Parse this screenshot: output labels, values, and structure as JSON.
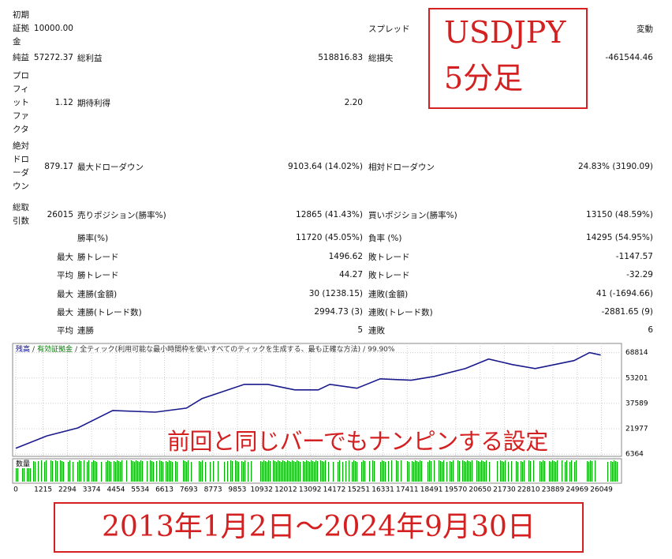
{
  "report": {
    "rows": [
      [
        "初期証拠金",
        "10000.00",
        null,
        null,
        "スプレッド",
        "変動"
      ],
      [
        "純益",
        "57272.37",
        "総利益",
        "518816.83",
        "総損失",
        "-461544.46"
      ],
      [
        "プロフィットファクタ",
        "1.12",
        "期待利得",
        "2.20",
        null,
        null
      ],
      [
        "絶対ドローダウン",
        "879.17",
        "最大ドローダウン",
        "9103.64 (14.02%)",
        "相対ドローダウン",
        "24.83% (3190.09)"
      ],
      [
        "総取引数",
        "26015",
        "売りポジション(勝率%)",
        "12865 (41.43%)",
        "買いポジション(勝率%)",
        "13150 (48.59%)"
      ],
      [
        null,
        null,
        "勝率(%)",
        "11720 (45.05%)",
        "負率 (%)",
        "14295 (54.95%)"
      ],
      [
        null,
        "最大",
        "勝トレード",
        "1496.62",
        "敗トレード",
        "-1147.57"
      ],
      [
        null,
        "平均",
        "勝トレード",
        "44.27",
        "敗トレード",
        "-32.29"
      ],
      [
        null,
        "最大",
        "連勝(金額)",
        "30 (1238.15)",
        "連敗(金額)",
        "41 (-1694.66)"
      ],
      [
        null,
        "最大",
        "連勝(トレード数)",
        "2994.73 (3)",
        "連敗(トレード数)",
        "-2881.65 (9)"
      ],
      [
        null,
        "平均",
        "連勝",
        "5",
        "連敗",
        "6"
      ]
    ],
    "annotations": {
      "symbol": "USDJPY",
      "timeframe": "5分足",
      "overlay": "前回と同じバーでもナンピンする設定",
      "period": "2013年1月2日～2024年9月30日"
    }
  },
  "chart_data": {
    "type": "line",
    "legend": [
      "残高",
      "有効証拠金",
      "全ティック(利用可能な最小時間枠を使いすべてのティックを生成する、最も正確な方法)",
      "99.90%"
    ],
    "legend_separator": "/",
    "legend_colors": [
      "#00008b",
      "#008000",
      "#333333",
      "#333333"
    ],
    "volume_label": "数量",
    "volume_color": "#00b000",
    "grid": true,
    "xlim": [
      0,
      26800
    ],
    "ylim": [
      5000,
      73000
    ],
    "xticks": [
      0,
      1215,
      2294,
      3374,
      4454,
      5534,
      6613,
      7693,
      8773,
      9853,
      10932,
      12012,
      13092,
      14172,
      15251,
      16331,
      17411,
      18491,
      19570,
      20650,
      21730,
      22810,
      23889,
      24969,
      26049
    ],
    "yticks": [
      6364,
      21977,
      37589,
      53201,
      68814
    ],
    "series": [
      {
        "name": "残高",
        "color": "#1a1a8c",
        "x": [
          0,
          1380,
          2760,
          4310,
          6210,
          7590,
          8280,
          10170,
          11210,
          12410,
          13450,
          13970,
          15170,
          16210,
          17590,
          18620,
          20000,
          21030,
          22070,
          23100,
          24830,
          25520,
          26015
        ],
        "values": [
          10000,
          17600,
          22500,
          33200,
          32200,
          34700,
          40500,
          49300,
          49300,
          45900,
          45900,
          49300,
          46900,
          52700,
          51800,
          54200,
          59000,
          64900,
          61500,
          59000,
          63900,
          68800,
          67300
        ]
      }
    ]
  }
}
